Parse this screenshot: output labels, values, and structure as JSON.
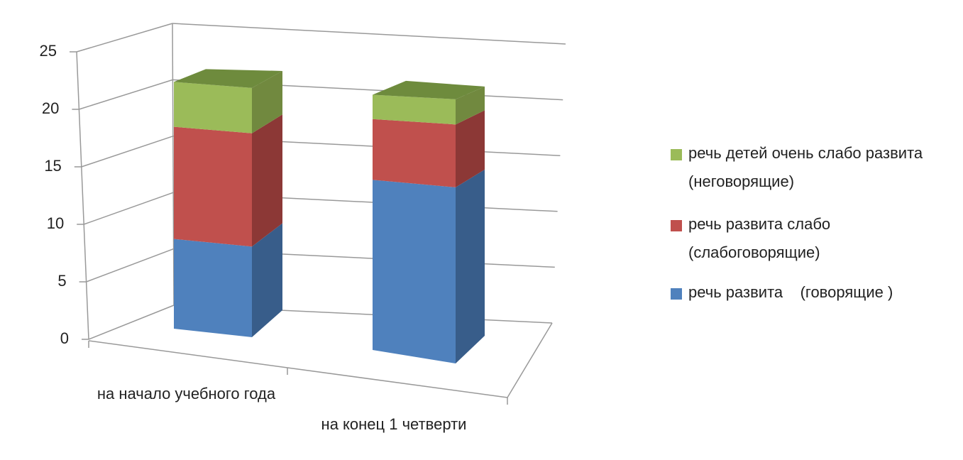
{
  "chart_data": {
    "type": "bar3d_stacked",
    "categories": [
      "на начало учебного года",
      "на конец 1 четверти"
    ],
    "series": [
      {
        "name": "речь развита    (говорящие )",
        "color": "#4f81bd",
        "values": [
          8,
          14
        ]
      },
      {
        "name": "речь развита слабо (слабоговорящие)",
        "color": "#c0504d",
        "values": [
          10,
          5
        ]
      },
      {
        "name": "речь детей очень слабо развита (неговорящие)",
        "color": "#9bbb59",
        "values": [
          4,
          2
        ]
      }
    ],
    "ylim": [
      0,
      25
    ],
    "yticks": [
      0,
      5,
      10,
      15,
      20,
      25
    ],
    "grid": true,
    "legend": "right"
  }
}
